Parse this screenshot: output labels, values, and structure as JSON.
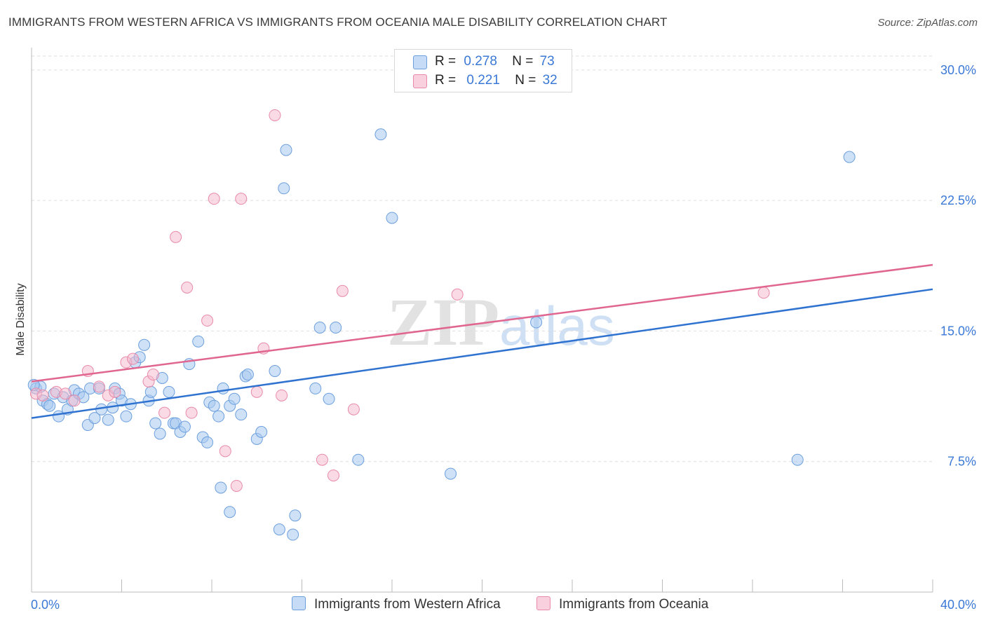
{
  "title": "IMMIGRANTS FROM WESTERN AFRICA VS IMMIGRANTS FROM OCEANIA MALE DISABILITY CORRELATION CHART",
  "source": "Source: ZipAtlas.com",
  "watermark": {
    "zip": "ZIP",
    "atlas": "atlas"
  },
  "legend_top": [
    {
      "r_label": "R =",
      "r_value": "0.278",
      "n_label": "N =",
      "n_value": "73"
    },
    {
      "r_label": "R =",
      "r_value": "0.221",
      "n_label": "N =",
      "n_value": "32"
    }
  ],
  "colors": {
    "blue_fill": "#a8c8f0",
    "blue_stroke": "#6c9fdd",
    "blue_line": "#2f72d0",
    "pink_fill": "#f5b7cb",
    "pink_stroke": "#e88aa8",
    "pink_line": "#e06690",
    "tick_text": "#3a78d6",
    "grid": "#dddddd"
  },
  "chart_data": {
    "type": "scatter",
    "title": "IMMIGRANTS FROM WESTERN AFRICA VS IMMIGRANTS FROM OCEANIA MALE DISABILITY CORRELATION CHART",
    "xlabel": "",
    "ylabel": "Male Disability",
    "xlim": [
      0,
      40
    ],
    "ylim": [
      0,
      30.8
    ],
    "y_ticks": [
      7.5,
      15.0,
      22.5,
      30.0
    ],
    "y_tick_labels": [
      "7.5%",
      "15.0%",
      "22.5%",
      "30.0%"
    ],
    "x_tick_labels": [
      "0.0%",
      "40.0%"
    ],
    "x_minor_ticks": [
      0,
      4,
      8,
      12,
      16,
      20,
      24,
      28,
      32,
      36,
      40
    ],
    "grid": true,
    "series": [
      {
        "name": "Immigrants from Western Africa",
        "color": "#6c9fdd",
        "trend": {
          "x": [
            0,
            40
          ],
          "y": [
            10.0,
            17.4
          ]
        },
        "points": [
          [
            0.2,
            11.7
          ],
          [
            0.4,
            11.8
          ],
          [
            0.5,
            11.0
          ],
          [
            0.7,
            10.8
          ],
          [
            0.8,
            10.7
          ],
          [
            1.0,
            11.4
          ],
          [
            1.2,
            10.1
          ],
          [
            1.4,
            11.2
          ],
          [
            1.6,
            10.5
          ],
          [
            1.8,
            11.0
          ],
          [
            1.9,
            11.6
          ],
          [
            2.1,
            11.4
          ],
          [
            2.3,
            11.2
          ],
          [
            2.5,
            9.6
          ],
          [
            2.6,
            11.7
          ],
          [
            2.8,
            10.0
          ],
          [
            3.0,
            11.7
          ],
          [
            3.1,
            10.5
          ],
          [
            3.4,
            9.9
          ],
          [
            3.6,
            10.6
          ],
          [
            3.7,
            11.7
          ],
          [
            3.9,
            11.4
          ],
          [
            4.0,
            11.0
          ],
          [
            4.2,
            10.1
          ],
          [
            4.4,
            10.8
          ],
          [
            4.6,
            13.2
          ],
          [
            4.8,
            13.5
          ],
          [
            5.0,
            14.2
          ],
          [
            5.2,
            11.0
          ],
          [
            5.3,
            11.5
          ],
          [
            5.5,
            9.7
          ],
          [
            5.8,
            12.3
          ],
          [
            5.7,
            9.1
          ],
          [
            6.1,
            11.5
          ],
          [
            6.3,
            9.7
          ],
          [
            6.4,
            9.7
          ],
          [
            6.6,
            9.2
          ],
          [
            6.8,
            9.5
          ],
          [
            7.0,
            13.1
          ],
          [
            7.4,
            14.4
          ],
          [
            7.6,
            8.9
          ],
          [
            7.8,
            8.6
          ],
          [
            7.9,
            10.9
          ],
          [
            8.1,
            10.7
          ],
          [
            8.3,
            10.1
          ],
          [
            8.5,
            11.7
          ],
          [
            8.8,
            10.7
          ],
          [
            9.0,
            11.1
          ],
          [
            9.3,
            10.2
          ],
          [
            9.5,
            12.4
          ],
          [
            9.6,
            12.5
          ],
          [
            10.0,
            8.8
          ],
          [
            10.2,
            9.2
          ],
          [
            10.8,
            12.7
          ],
          [
            11.2,
            23.2
          ],
          [
            11.3,
            25.4
          ],
          [
            12.6,
            11.7
          ],
          [
            13.2,
            11.1
          ],
          [
            12.8,
            15.2
          ],
          [
            13.5,
            15.2
          ],
          [
            14.5,
            7.6
          ],
          [
            15.5,
            26.3
          ],
          [
            16.0,
            21.5
          ],
          [
            18.6,
            6.8
          ],
          [
            22.4,
            15.5
          ],
          [
            8.4,
            6.0
          ],
          [
            8.8,
            4.6
          ],
          [
            11.0,
            3.6
          ],
          [
            11.6,
            3.3
          ],
          [
            11.7,
            4.4
          ],
          [
            34.0,
            7.6
          ],
          [
            36.3,
            25.0
          ],
          [
            0.1,
            11.9
          ]
        ]
      },
      {
        "name": "Immigrants from Oceania",
        "color": "#e88aa8",
        "trend": {
          "x": [
            0,
            40
          ],
          "y": [
            12.1,
            18.8
          ]
        },
        "points": [
          [
            0.2,
            11.4
          ],
          [
            0.5,
            11.3
          ],
          [
            1.1,
            11.5
          ],
          [
            1.5,
            11.4
          ],
          [
            1.9,
            11.0
          ],
          [
            2.5,
            12.7
          ],
          [
            3.0,
            11.8
          ],
          [
            3.4,
            11.3
          ],
          [
            3.7,
            11.5
          ],
          [
            4.2,
            13.2
          ],
          [
            4.5,
            13.4
          ],
          [
            5.2,
            12.1
          ],
          [
            5.4,
            12.5
          ],
          [
            5.9,
            10.3
          ],
          [
            6.4,
            20.4
          ],
          [
            6.9,
            17.5
          ],
          [
            7.1,
            10.3
          ],
          [
            7.8,
            15.6
          ],
          [
            8.1,
            22.6
          ],
          [
            8.6,
            8.1
          ],
          [
            9.1,
            6.1
          ],
          [
            9.3,
            22.6
          ],
          [
            10.0,
            11.5
          ],
          [
            10.3,
            14.0
          ],
          [
            10.8,
            27.4
          ],
          [
            11.1,
            11.3
          ],
          [
            12.9,
            7.6
          ],
          [
            13.4,
            6.7
          ],
          [
            13.8,
            17.3
          ],
          [
            14.3,
            10.5
          ],
          [
            18.9,
            17.1
          ],
          [
            32.5,
            17.2
          ]
        ]
      }
    ]
  },
  "legend_bottom": [
    "Immigrants from Western Africa",
    "Immigrants from Oceania"
  ]
}
